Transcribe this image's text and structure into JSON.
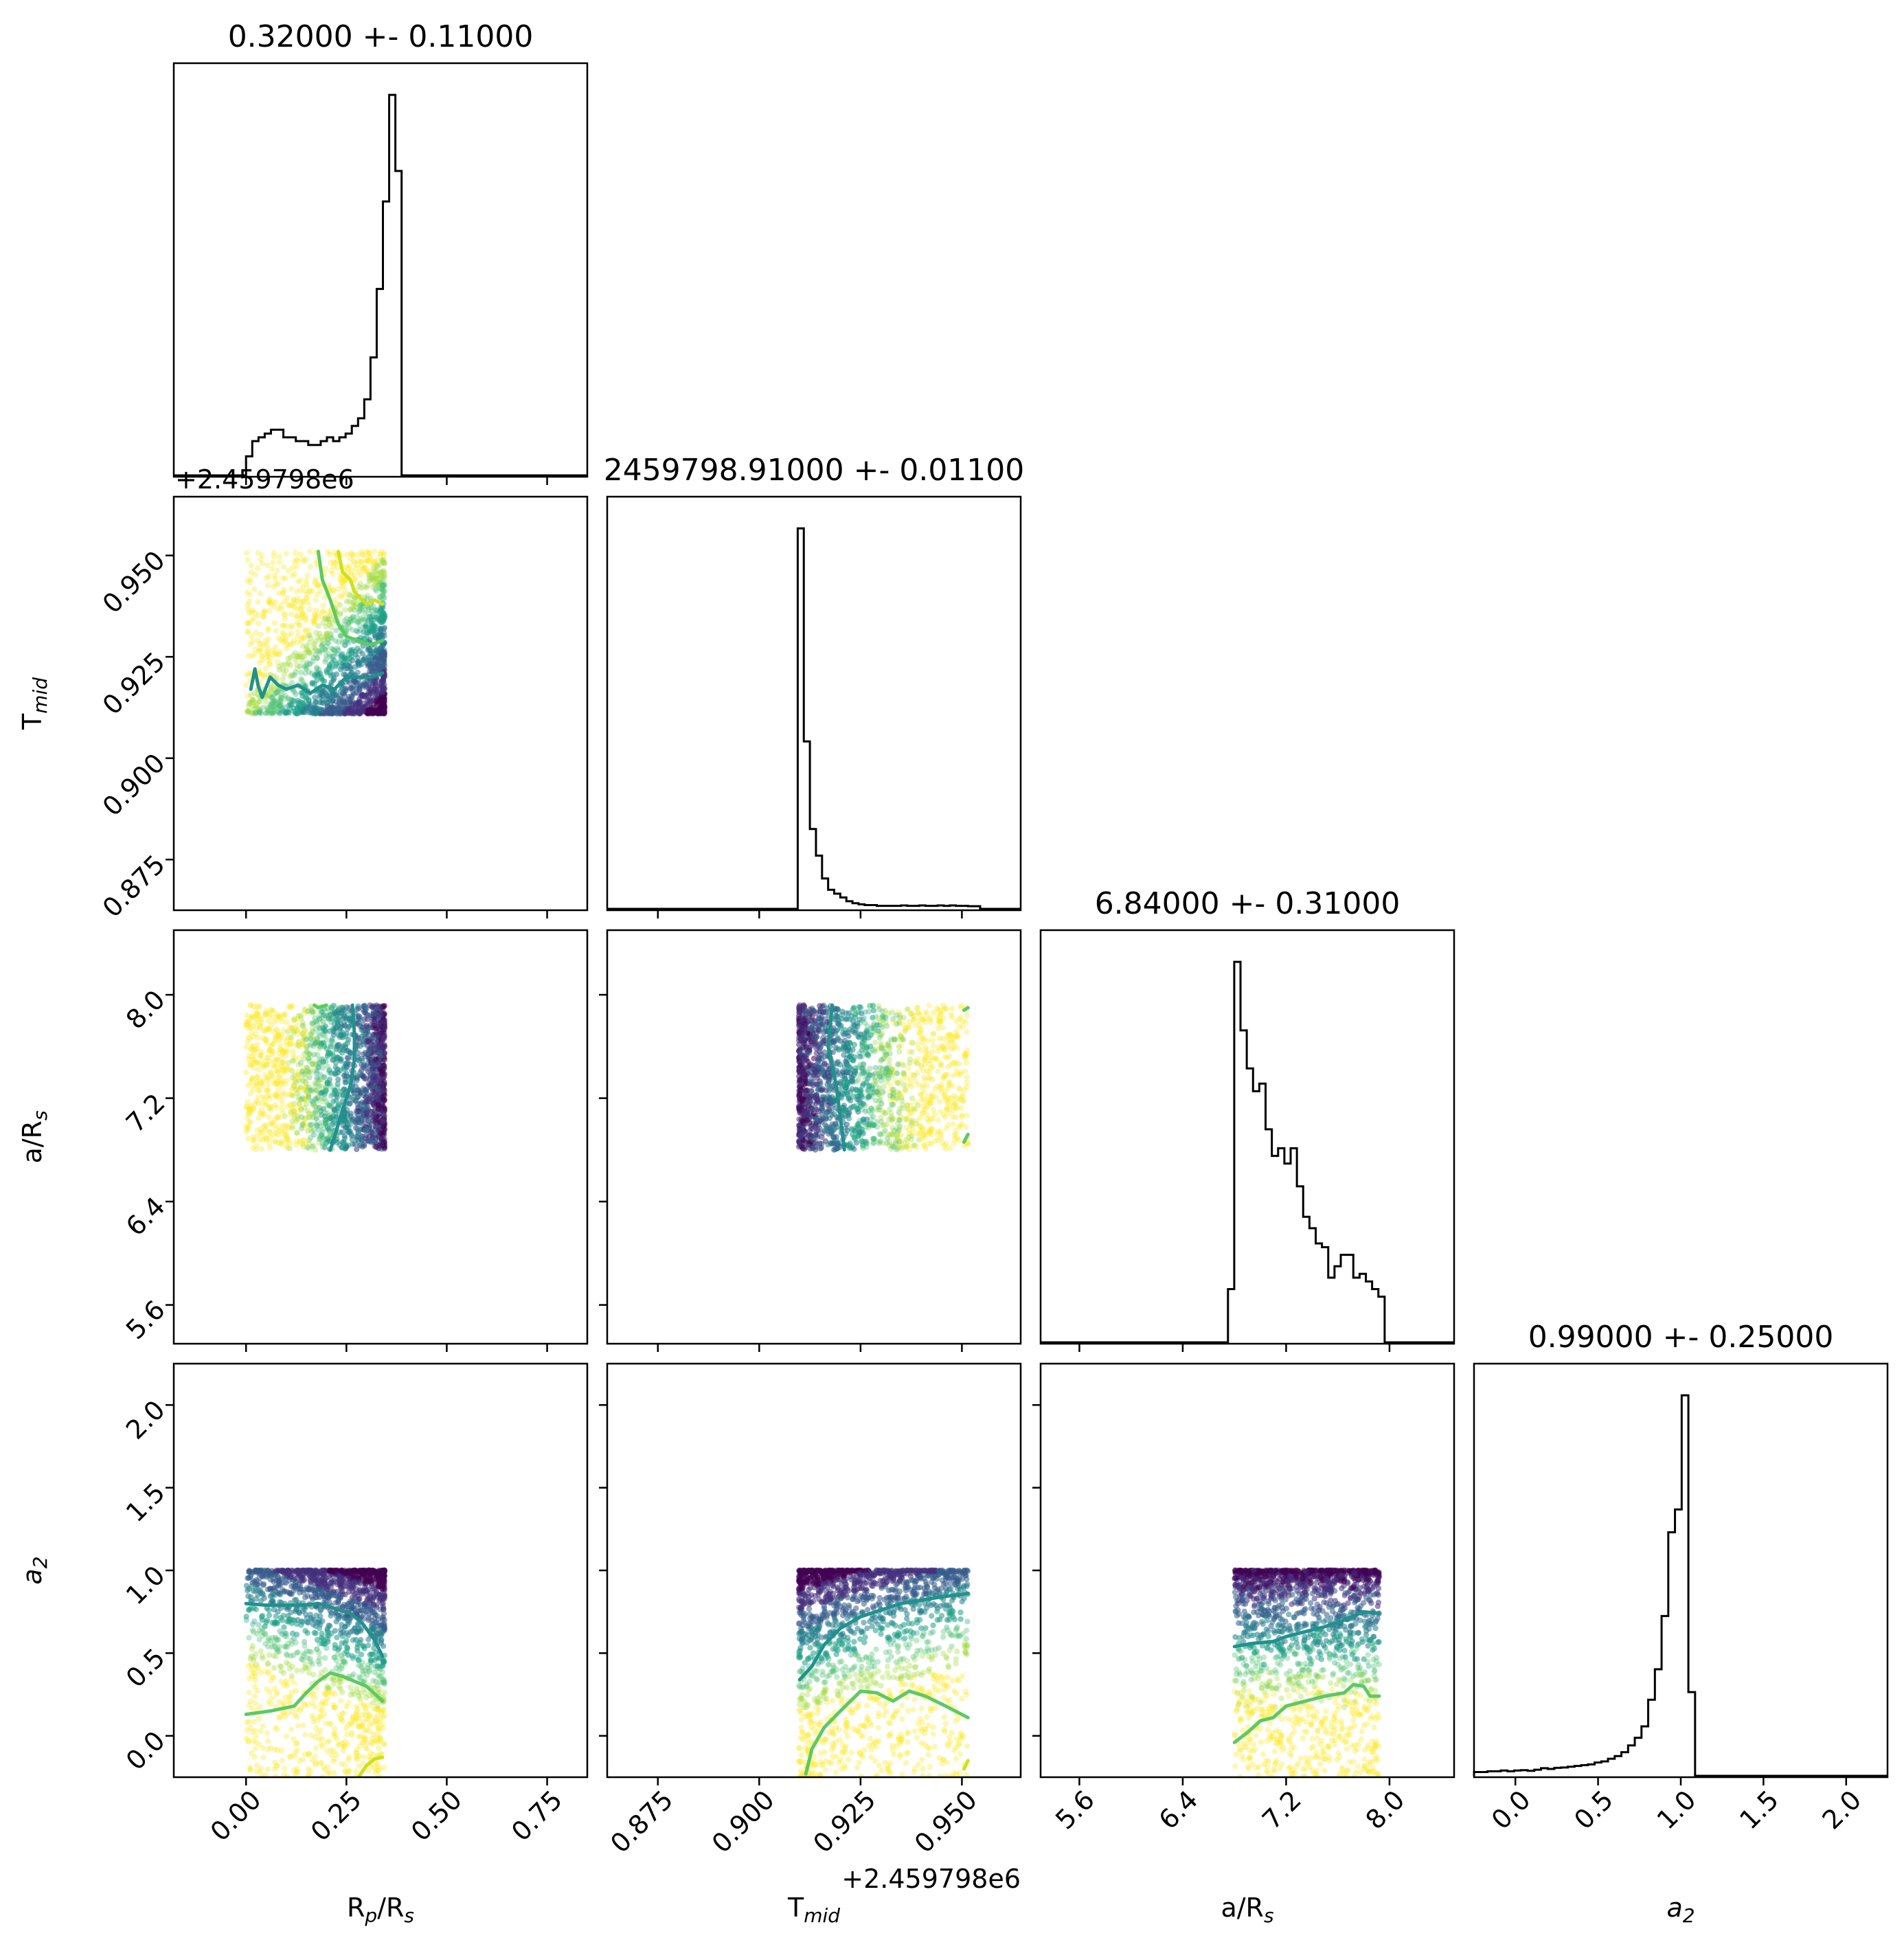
{
  "chart_data": {
    "type": "corner",
    "parameters": [
      {
        "key": "rp",
        "label": "R",
        "label_sub": "p",
        "label_rest": "/R",
        "label_sub2": "s",
        "ylabel_visible": false
      },
      {
        "key": "tmid",
        "label": "T",
        "label_sub": "mid",
        "label_rest": "",
        "label_sub2": ""
      },
      {
        "key": "ars",
        "label": "a/R",
        "label_sub": "s",
        "label_rest": "",
        "label_sub2": ""
      },
      {
        "key": "a2",
        "label": "a",
        "label_sub": "2",
        "label_rest": "",
        "label_sub2": ""
      }
    ],
    "titles": [
      "0.32000 +- 0.11000",
      "2459798.91000 +- 0.01100",
      "6.84000 +- 0.31000",
      "0.99000 +- 0.25000"
    ],
    "offset_texts": {
      "tmid_y": "+2.459798e6",
      "tmid_x": "+2.459798e6"
    },
    "ranges": {
      "rp": [
        -0.18,
        0.85
      ],
      "tmid": [
        0.8625,
        0.9645
      ],
      "ars": [
        5.3,
        8.5
      ],
      "a2": [
        -0.25,
        2.25
      ]
    },
    "ticks": {
      "rp": [
        "0.00",
        "0.25",
        "0.50",
        "0.75"
      ],
      "tmid": [
        "0.875",
        "0.900",
        "0.925",
        "0.950"
      ],
      "ars": [
        "5.6",
        "6.4",
        "7.2",
        "8.0"
      ],
      "a2": [
        "0.0",
        "0.5",
        "1.0",
        "1.5",
        "2.0"
      ]
    },
    "tick_values": {
      "rp": [
        0.0,
        0.25,
        0.5,
        0.75
      ],
      "tmid": [
        0.875,
        0.9,
        0.925,
        0.95
      ],
      "ars": [
        5.6,
        6.4,
        7.2,
        8.0
      ],
      "a2": [
        0.0,
        0.5,
        1.0,
        1.5,
        2.0
      ]
    },
    "histograms": {
      "rp": {
        "bin_start": 0.0,
        "bin_width": 0.0155,
        "counts": [
          0.05,
          0.09,
          0.1,
          0.11,
          0.12,
          0.12,
          0.1,
          0.1,
          0.09,
          0.09,
          0.08,
          0.08,
          0.09,
          0.1,
          0.09,
          0.1,
          0.11,
          0.13,
          0.15,
          0.2,
          0.31,
          0.49,
          0.72,
          1.0,
          0.8,
          0.0
        ]
      },
      "tmid": {
        "bin_start": 0.9095,
        "bin_width": 0.0015,
        "counts": [
          1.0,
          0.44,
          0.21,
          0.14,
          0.08,
          0.05,
          0.04,
          0.03,
          0.02,
          0.015,
          0.012,
          0.01,
          0.01,
          0.008,
          0.008,
          0.008,
          0.008,
          0.009,
          0.008,
          0.008,
          0.009,
          0.008,
          0.008,
          0.009,
          0.008,
          0.009,
          0.008,
          0.008,
          0.007,
          0.007
        ]
      },
      "ars": {
        "bin_start": 6.75,
        "bin_width": 0.0485,
        "counts": [
          0.14,
          1.0,
          0.82,
          0.72,
          0.66,
          0.68,
          0.56,
          0.49,
          0.51,
          0.47,
          0.51,
          0.41,
          0.33,
          0.3,
          0.26,
          0.25,
          0.17,
          0.2,
          0.23,
          0.23,
          0.17,
          0.18,
          0.16,
          0.14,
          0.12,
          0.0
        ]
      },
      "a2": {
        "bin_start": -0.25,
        "bin_width": 0.0405,
        "counts": [
          0.01,
          0.01,
          0.012,
          0.012,
          0.014,
          0.012,
          0.014,
          0.015,
          0.013,
          0.016,
          0.02,
          0.018,
          0.021,
          0.022,
          0.024,
          0.026,
          0.028,
          0.03,
          0.035,
          0.038,
          0.045,
          0.052,
          0.062,
          0.08,
          0.1,
          0.13,
          0.2,
          0.28,
          0.42,
          0.64,
          0.7,
          1.0,
          0.22,
          0.0
        ]
      }
    },
    "scatter_panels": [
      {
        "x": "rp",
        "y": "tmid",
        "x_domain": [
          0.0,
          0.345
        ],
        "y_domain": [
          0.911,
          0.951
        ],
        "dense_corner": "high_x_low_y",
        "contours": [
          {
            "color": "#21918c",
            "points": [
              [
                0.012,
                0.917
              ],
              [
                0.022,
                0.922
              ],
              [
                0.03,
                0.918
              ],
              [
                0.04,
                0.915
              ],
              [
                0.06,
                0.92
              ],
              [
                0.08,
                0.918
              ],
              [
                0.1,
                0.917
              ],
              [
                0.13,
                0.918
              ],
              [
                0.16,
                0.916
              ],
              [
                0.19,
                0.918
              ],
              [
                0.22,
                0.917
              ],
              [
                0.25,
                0.92
              ],
              [
                0.28,
                0.92
              ],
              [
                0.31,
                0.92
              ],
              [
                0.34,
                0.921
              ]
            ]
          },
          {
            "color": "#5ec962",
            "points": [
              [
                0.18,
                0.951
              ],
              [
                0.19,
                0.944
              ],
              [
                0.21,
                0.939
              ],
              [
                0.22,
                0.936
              ],
              [
                0.23,
                0.933
              ],
              [
                0.25,
                0.93
              ],
              [
                0.28,
                0.929
              ],
              [
                0.31,
                0.928
              ],
              [
                0.34,
                0.929
              ]
            ]
          },
          {
            "color": "#cde11d",
            "points": [
              [
                0.23,
                0.951
              ],
              [
                0.24,
                0.946
              ],
              [
                0.26,
                0.944
              ],
              [
                0.27,
                0.941
              ],
              [
                0.28,
                0.94
              ],
              [
                0.3,
                0.938
              ],
              [
                0.32,
                0.939
              ],
              [
                0.34,
                0.938
              ]
            ]
          }
        ]
      },
      {
        "x": "rp",
        "y": "ars",
        "x_domain": [
          0.0,
          0.345
        ],
        "y_domain": [
          6.8,
          7.92
        ],
        "dense_corner": "high_x",
        "contours": [
          {
            "color": "#21918c",
            "points": [
              [
                0.265,
                7.92
              ],
              [
                0.27,
                7.7
              ],
              [
                0.27,
                7.5
              ],
              [
                0.26,
                7.3
              ],
              [
                0.24,
                7.1
              ],
              [
                0.22,
                6.9
              ],
              [
                0.21,
                6.8
              ]
            ]
          },
          {
            "color": "#5ec962",
            "points": [
              [
                0.17,
                7.92
              ],
              [
                0.18,
                7.9
              ],
              [
                0.2,
                7.92
              ]
            ]
          }
        ]
      },
      {
        "x": "tmid",
        "y": "ars",
        "x_domain": [
          0.9098,
          0.9515
        ],
        "y_domain": [
          6.8,
          7.92
        ],
        "dense_corner": "low_x",
        "contours": [
          {
            "color": "#21918c",
            "points": [
              [
                0.918,
                7.92
              ],
              [
                0.917,
                7.6
              ],
              [
                0.919,
                7.3
              ],
              [
                0.92,
                7.05
              ],
              [
                0.921,
                6.8
              ]
            ]
          },
          {
            "color": "#5ec962",
            "points": [
              [
                0.9505,
                7.88
              ],
              [
                0.9515,
                7.9
              ]
            ]
          },
          {
            "color": "#5ec962",
            "points": [
              [
                0.9505,
                6.86
              ],
              [
                0.9515,
                6.92
              ]
            ]
          }
        ]
      },
      {
        "x": "rp",
        "y": "a2",
        "x_domain": [
          0.0,
          0.345
        ],
        "y_domain": [
          -0.25,
          1.0
        ],
        "dense_corner": "high_x_high_y",
        "contours": [
          {
            "color": "#21918c",
            "points": [
              [
                0.0,
                0.8
              ],
              [
                0.05,
                0.79
              ],
              [
                0.1,
                0.79
              ],
              [
                0.14,
                0.79
              ],
              [
                0.18,
                0.8
              ],
              [
                0.22,
                0.77
              ],
              [
                0.26,
                0.74
              ],
              [
                0.29,
                0.68
              ],
              [
                0.32,
                0.58
              ],
              [
                0.34,
                0.48
              ]
            ]
          },
          {
            "color": "#5ec962",
            "points": [
              [
                0.0,
                0.13
              ],
              [
                0.06,
                0.15
              ],
              [
                0.12,
                0.18
              ],
              [
                0.15,
                0.26
              ],
              [
                0.18,
                0.33
              ],
              [
                0.21,
                0.38
              ],
              [
                0.24,
                0.36
              ],
              [
                0.27,
                0.33
              ],
              [
                0.3,
                0.3
              ],
              [
                0.34,
                0.21
              ]
            ]
          },
          {
            "color": "#cde11d",
            "points": [
              [
                0.28,
                -0.25
              ],
              [
                0.3,
                -0.18
              ],
              [
                0.32,
                -0.14
              ],
              [
                0.34,
                -0.13
              ]
            ]
          }
        ]
      },
      {
        "x": "tmid",
        "y": "a2",
        "x_domain": [
          0.9098,
          0.9515
        ],
        "y_domain": [
          -0.25,
          1.0
        ],
        "dense_corner": "low_x_high_y",
        "contours": [
          {
            "color": "#21918c",
            "points": [
              [
                0.91,
                0.34
              ],
              [
                0.913,
                0.42
              ],
              [
                0.916,
                0.55
              ],
              [
                0.92,
                0.65
              ],
              [
                0.925,
                0.72
              ],
              [
                0.93,
                0.76
              ],
              [
                0.935,
                0.8
              ],
              [
                0.94,
                0.82
              ],
              [
                0.945,
                0.84
              ],
              [
                0.9515,
                0.86
              ]
            ]
          },
          {
            "color": "#5ec962",
            "points": [
              [
                0.9115,
                -0.23
              ],
              [
                0.913,
                -0.08
              ],
              [
                0.916,
                0.05
              ],
              [
                0.92,
                0.15
              ],
              [
                0.925,
                0.27
              ],
              [
                0.929,
                0.26
              ],
              [
                0.933,
                0.21
              ],
              [
                0.937,
                0.27
              ],
              [
                0.941,
                0.24
              ],
              [
                0.946,
                0.18
              ],
              [
                0.9515,
                0.11
              ]
            ]
          },
          {
            "color": "#cde11d",
            "points": [
              [
                0.9505,
                -0.2
              ],
              [
                0.9515,
                -0.15
              ]
            ]
          }
        ]
      },
      {
        "x": "ars",
        "y": "a2",
        "x_domain": [
          6.8,
          7.92
        ],
        "y_domain": [
          -0.25,
          1.0
        ],
        "dense_corner": "high_y",
        "contours": [
          {
            "color": "#21918c",
            "points": [
              [
                6.8,
                0.54
              ],
              [
                6.95,
                0.56
              ],
              [
                7.1,
                0.57
              ],
              [
                7.2,
                0.6
              ],
              [
                7.35,
                0.63
              ],
              [
                7.5,
                0.66
              ],
              [
                7.65,
                0.7
              ],
              [
                7.8,
                0.75
              ],
              [
                7.92,
                0.74
              ]
            ]
          },
          {
            "color": "#5ec962",
            "points": [
              [
                6.8,
                -0.04
              ],
              [
                6.9,
                0.02
              ],
              [
                7.0,
                0.09
              ],
              [
                7.1,
                0.11
              ],
              [
                7.2,
                0.18
              ],
              [
                7.35,
                0.21
              ],
              [
                7.5,
                0.24
              ],
              [
                7.65,
                0.26
              ],
              [
                7.72,
                0.31
              ],
              [
                7.8,
                0.3
              ],
              [
                7.85,
                0.24
              ],
              [
                7.92,
                0.24
              ]
            ]
          }
        ]
      }
    ]
  }
}
